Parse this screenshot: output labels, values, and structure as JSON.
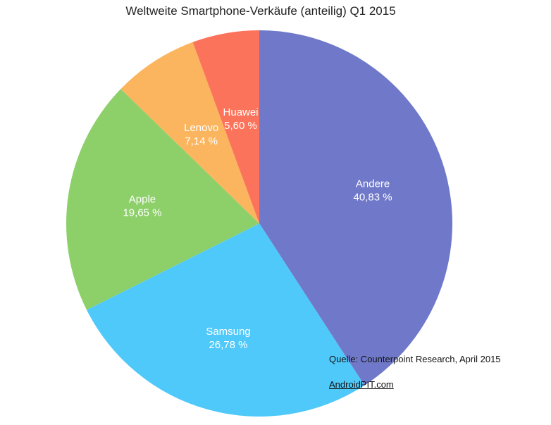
{
  "chart_data": {
    "type": "pie",
    "title": "Weltweite Smartphone-Verkäufe (anteilig) Q1 2015",
    "slices": [
      {
        "label": "Andere",
        "value": 40.83,
        "value_label": "40,83 %",
        "color": "#7079c9"
      },
      {
        "label": "Samsung",
        "value": 26.78,
        "value_label": "26,78 %",
        "color": "#4fc9fa"
      },
      {
        "label": "Apple",
        "value": 19.65,
        "value_label": "19,65 %",
        "color": "#8dd06a"
      },
      {
        "label": "Lenovo",
        "value": 7.14,
        "value_label": "7,14 %",
        "color": "#fbb55e"
      },
      {
        "label": "Huawei",
        "value": 5.6,
        "value_label": "5,60 %",
        "color": "#fb735a"
      }
    ]
  },
  "source_note": "Quelle: Counterpoint Research, April 2015",
  "site_link": "AndroidPIT.com"
}
